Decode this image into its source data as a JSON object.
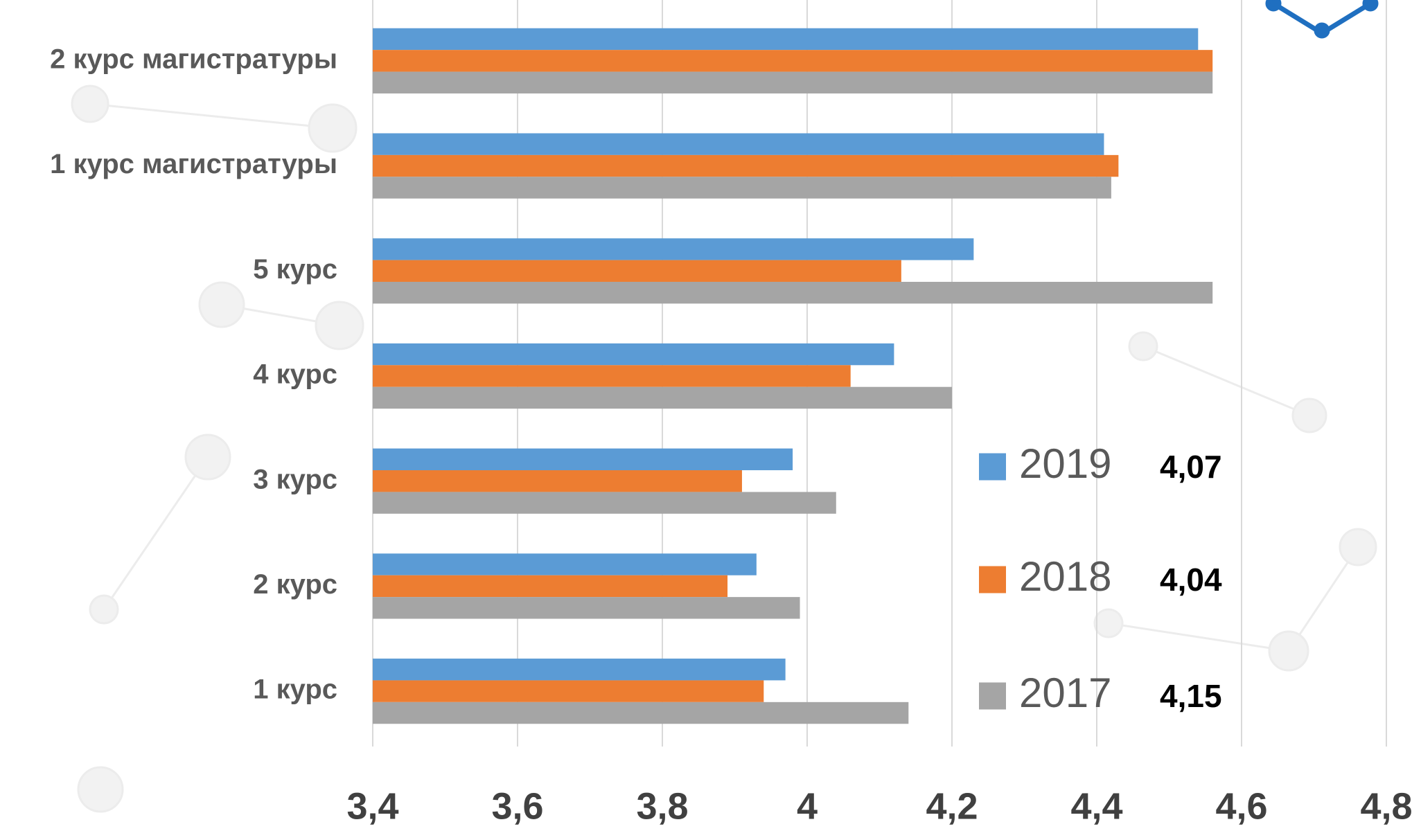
{
  "chart_data": {
    "type": "bar",
    "orientation": "horizontal",
    "categories": [
      "2 курс магистратуры",
      "1 курс магистратуры",
      "5 курс",
      "4 курс",
      "3 курс",
      "2 курс",
      "1 курс"
    ],
    "series": [
      {
        "name": "2019",
        "color": "#5b9bd5",
        "values": [
          4.54,
          4.41,
          4.23,
          4.12,
          3.98,
          3.93,
          3.97
        ],
        "summary": "4,07"
      },
      {
        "name": "2018",
        "color": "#ed7d31",
        "values": [
          4.56,
          4.43,
          4.13,
          4.06,
          3.91,
          3.89,
          3.94
        ],
        "summary": "4,04"
      },
      {
        "name": "2017",
        "color": "#a5a5a5",
        "values": [
          4.56,
          4.42,
          4.56,
          4.2,
          4.04,
          3.99,
          4.14
        ],
        "summary": "4,15"
      }
    ],
    "xlim": [
      3.4,
      4.8
    ],
    "xticks": [
      {
        "value": 3.4,
        "label": "3,4"
      },
      {
        "value": 3.6,
        "label": "3,6"
      },
      {
        "value": 3.8,
        "label": "3,8"
      },
      4,
      {
        "value": 4.2,
        "label": "4,2"
      },
      {
        "value": 4.4,
        "label": "4,4"
      },
      {
        "value": 4.6,
        "label": "4,6"
      },
      {
        "value": 4.8,
        "label": "4,8"
      }
    ],
    "grid": true
  }
}
